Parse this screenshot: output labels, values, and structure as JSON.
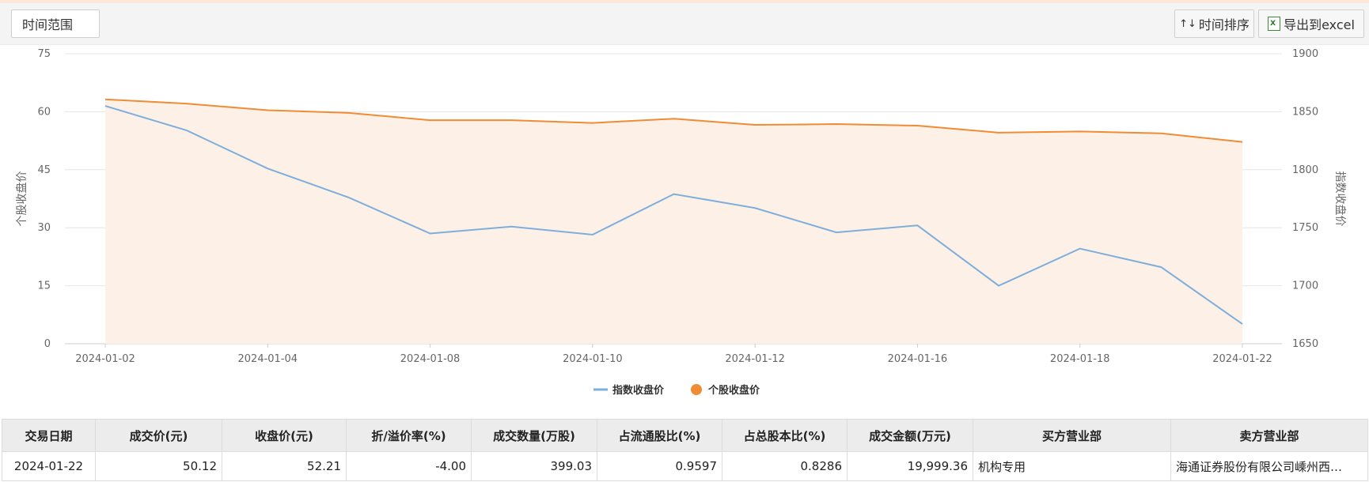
{
  "toolbar": {
    "range_label": "时间范围",
    "sort_label": "时间排序",
    "export_label": "导出到excel"
  },
  "chart_data": {
    "type": "line",
    "x": [
      "2024-01-02",
      "2024-01-03",
      "2024-01-04",
      "2024-01-05",
      "2024-01-08",
      "2024-01-09",
      "2024-01-10",
      "2024-01-11",
      "2024-01-12",
      "2024-01-15",
      "2024-01-16",
      "2024-01-17",
      "2024-01-18",
      "2024-01-19",
      "2024-01-22"
    ],
    "x_tick_labels": [
      "2024-01-02",
      "2024-01-04",
      "2024-01-08",
      "2024-01-10",
      "2024-01-12",
      "2024-01-16",
      "2024-01-18",
      "2024-01-22"
    ],
    "ylabel_left": "个股收盘价",
    "ylabel_right": "指数收盘价",
    "ylim_left": [
      0,
      75
    ],
    "yticks_left": [
      0,
      15,
      30,
      45,
      60,
      75
    ],
    "ylim_right": [
      1650,
      1900
    ],
    "yticks_right": [
      1650,
      1700,
      1750,
      1800,
      1850,
      1900
    ],
    "grid": true,
    "legend_position": "bottom-center",
    "series": [
      {
        "name": "指数收盘价",
        "axis": "right",
        "color": "#7eaedb",
        "values": [
          1855,
          1834,
          1801,
          1776,
          1745,
          1751,
          1744,
          1779,
          1767,
          1746,
          1752,
          1700,
          1732,
          1716,
          1667
        ]
      },
      {
        "name": "个股收盘价",
        "axis": "left",
        "color": "#ef8c35",
        "fill": "#fdf0e6",
        "values": [
          63.2,
          62.1,
          60.4,
          59.7,
          57.8,
          57.8,
          57.1,
          58.2,
          56.6,
          56.8,
          56.4,
          54.6,
          54.9,
          54.4,
          52.2
        ]
      }
    ]
  },
  "table": {
    "headers": [
      "交易日期",
      "成交价(元)",
      "收盘价(元)",
      "折/溢价率(%)",
      "成交数量(万股)",
      "占流通股比(%)",
      "占总股本比(%)",
      "成交金额(万元)",
      "买方营业部",
      "卖方营业部"
    ],
    "rows": [
      [
        "2024-01-22",
        "50.12",
        "52.21",
        "-4.00",
        "399.03",
        "0.9597",
        "0.8286",
        "19,999.36",
        "机构专用",
        "海通证券股份有限公司嵊州西…"
      ]
    ]
  }
}
